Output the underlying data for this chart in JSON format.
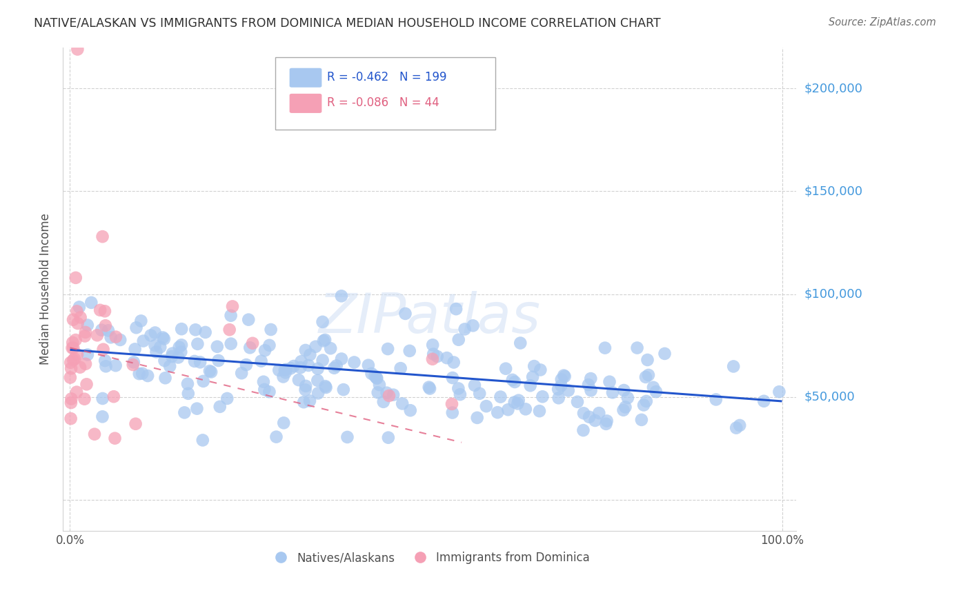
{
  "title": "NATIVE/ALASKAN VS IMMIGRANTS FROM DOMINICA MEDIAN HOUSEHOLD INCOME CORRELATION CHART",
  "source": "Source: ZipAtlas.com",
  "ylabel": "Median Household Income",
  "yticks": [
    0,
    50000,
    100000,
    150000,
    200000
  ],
  "ytick_labels": [
    "",
    "$50,000",
    "$100,000",
    "$150,000",
    "$200,000"
  ],
  "ymin": -15000,
  "ymax": 220000,
  "xmin": -0.01,
  "xmax": 1.02,
  "legend_blue_r": "-0.462",
  "legend_blue_n": "199",
  "legend_pink_r": "-0.086",
  "legend_pink_n": "44",
  "legend_label_blue": "Natives/Alaskans",
  "legend_label_pink": "Immigrants from Dominica",
  "scatter_blue_color": "#a8c8f0",
  "scatter_pink_color": "#f5a0b5",
  "line_blue_color": "#2255cc",
  "line_pink_color": "#e06080",
  "background_color": "#ffffff",
  "title_color": "#303030",
  "source_color": "#707070",
  "ytick_color": "#4499dd",
  "grid_color": "#cccccc",
  "blue_line_x0": 0.0,
  "blue_line_x1": 1.0,
  "blue_line_y0": 73000,
  "blue_line_y1": 48000,
  "pink_line_x0": 0.0,
  "pink_line_x1": 0.55,
  "pink_line_y0": 74000,
  "pink_line_y1": 28000
}
